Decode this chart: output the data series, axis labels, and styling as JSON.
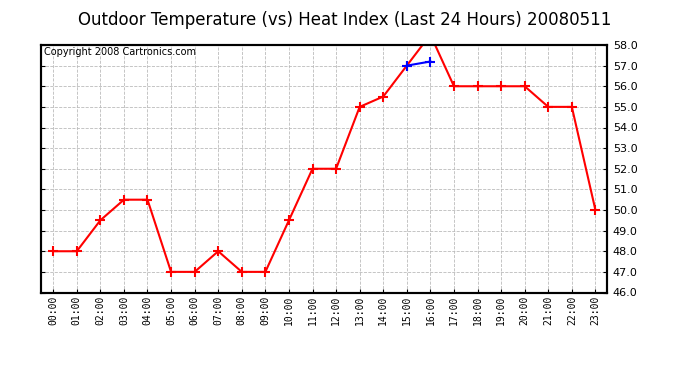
{
  "title": "Outdoor Temperature (vs) Heat Index (Last 24 Hours) 20080511",
  "copyright": "Copyright 2008 Cartronics.com",
  "hours": [
    "00:00",
    "01:00",
    "02:00",
    "03:00",
    "04:00",
    "05:00",
    "06:00",
    "07:00",
    "08:00",
    "09:00",
    "10:00",
    "11:00",
    "12:00",
    "13:00",
    "14:00",
    "15:00",
    "16:00",
    "17:00",
    "18:00",
    "19:00",
    "20:00",
    "21:00",
    "22:00",
    "23:00"
  ],
  "temp": [
    48.0,
    48.0,
    49.5,
    50.5,
    50.5,
    47.0,
    47.0,
    48.0,
    47.0,
    47.0,
    49.5,
    52.0,
    52.0,
    55.0,
    55.5,
    57.0,
    58.5,
    56.0,
    56.0,
    56.0,
    56.0,
    55.0,
    55.0,
    50.0
  ],
  "heat_index_partial": [
    null,
    null,
    null,
    null,
    null,
    null,
    null,
    null,
    null,
    null,
    null,
    null,
    null,
    null,
    null,
    57.0,
    57.2,
    null,
    null,
    null,
    null,
    null,
    null,
    null
  ],
  "ylim_min": 46.0,
  "ylim_max": 58.0,
  "ytick_min": 46.0,
  "ytick_max": 58.0,
  "ytick_step": 1.0,
  "temp_color": "#ff0000",
  "heat_index_color": "#0000ff",
  "background_color": "#ffffff",
  "grid_color": "#bbbbbb",
  "title_fontsize": 12,
  "copyright_fontsize": 7,
  "border_color": "#000000"
}
